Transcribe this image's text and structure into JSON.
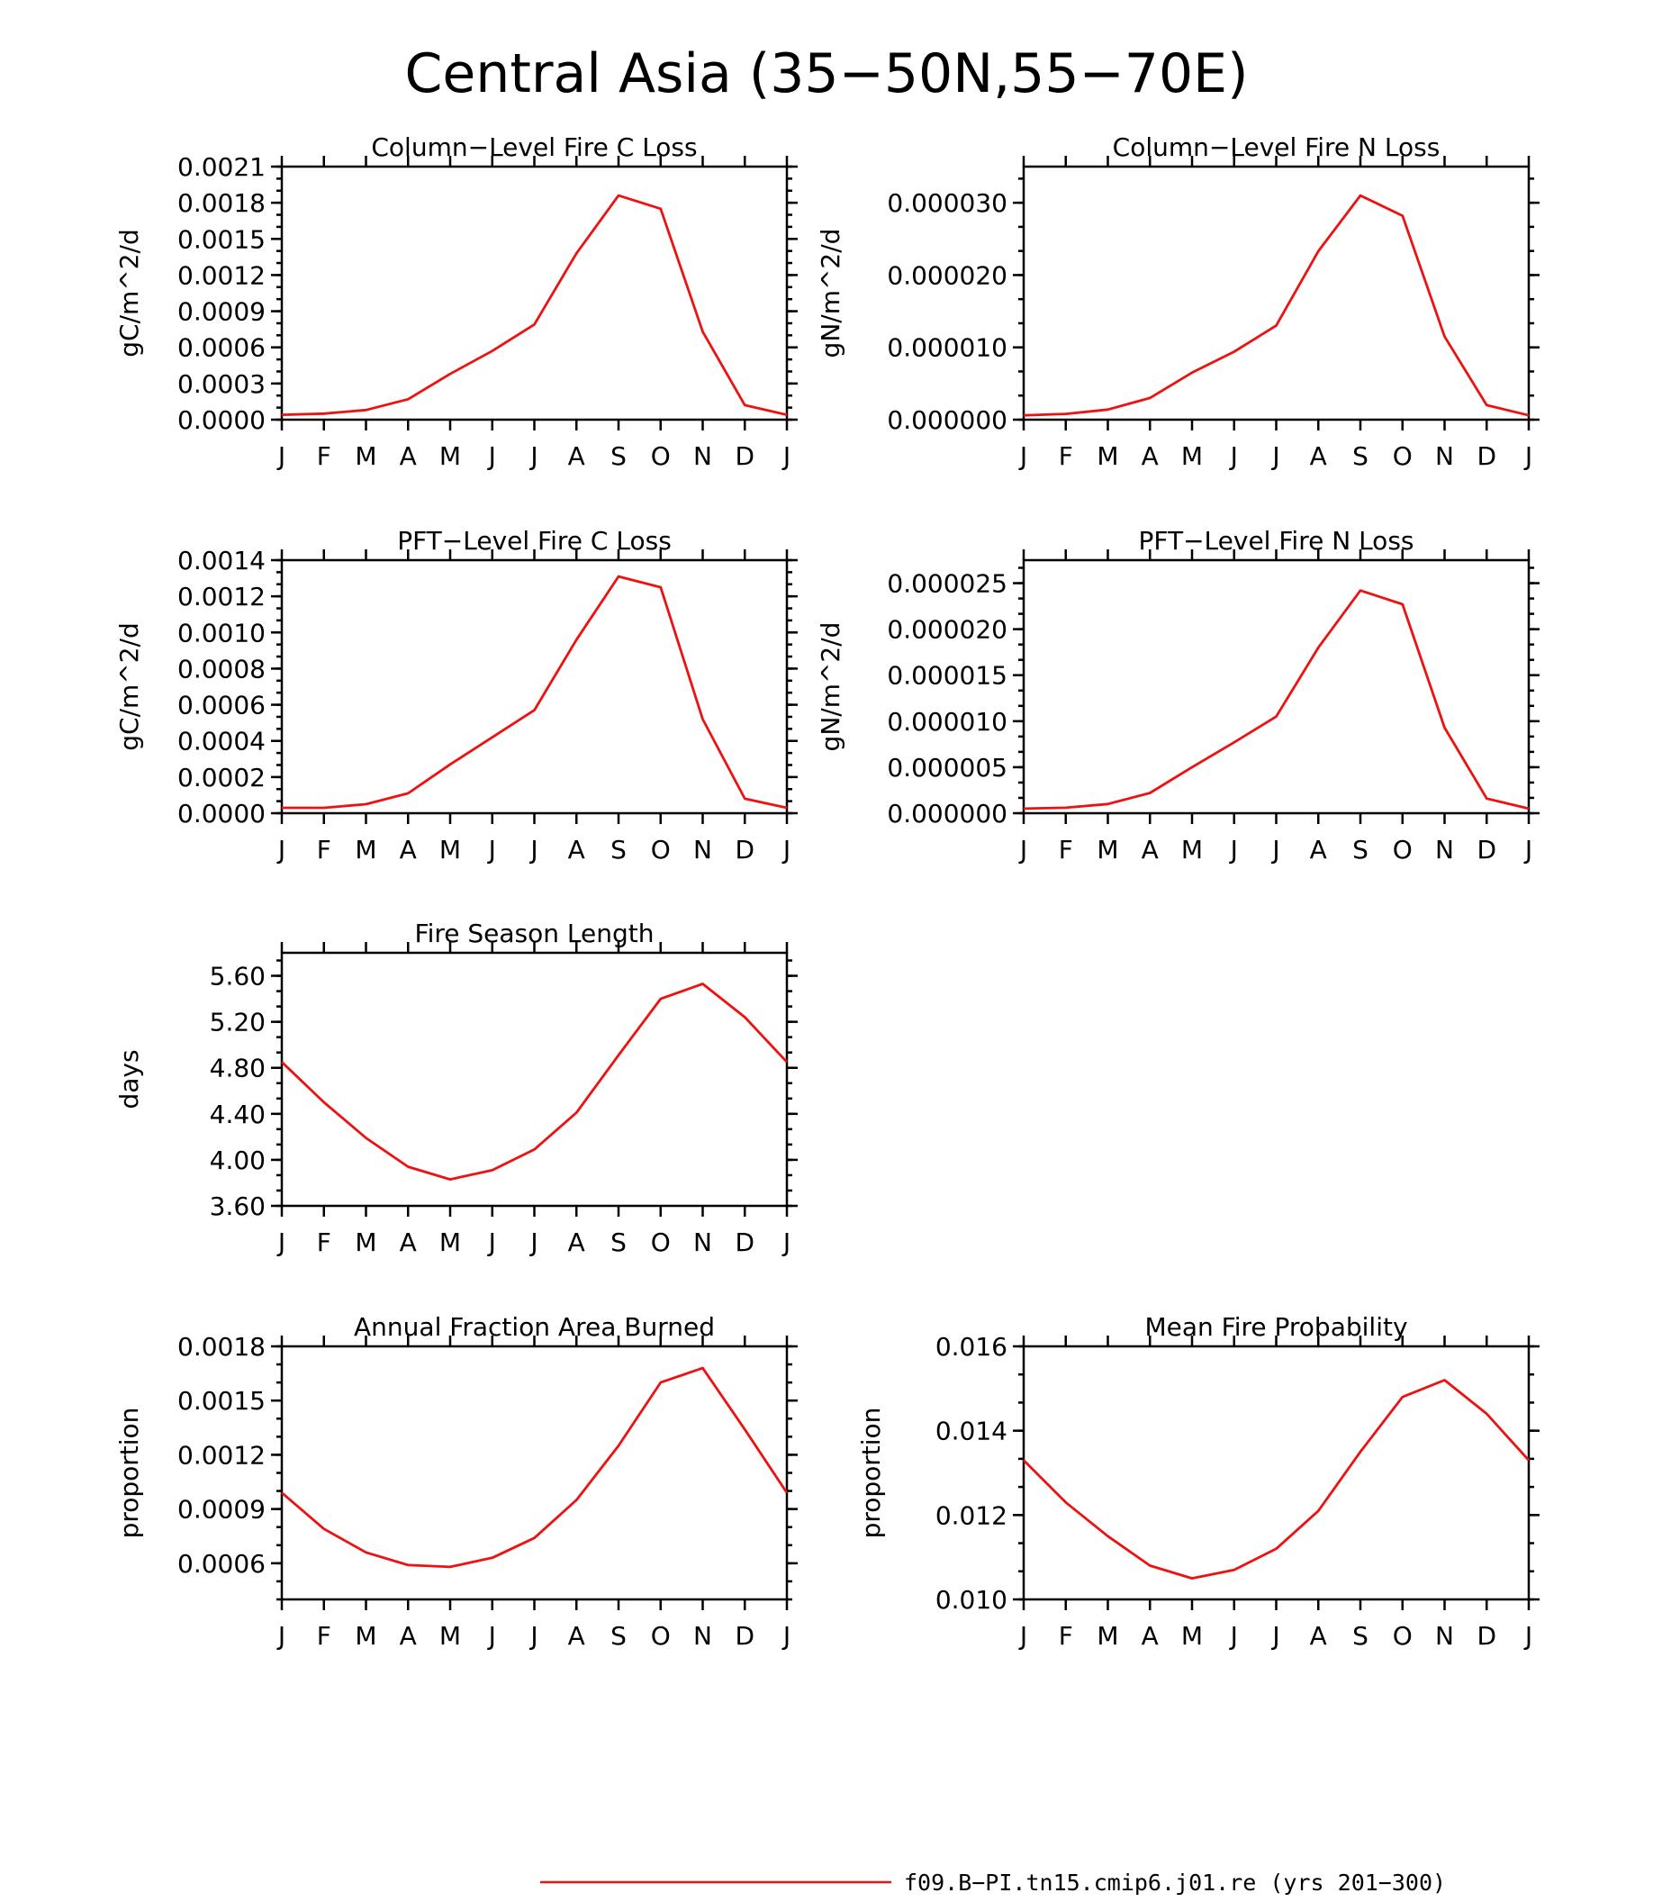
{
  "title": "Central Asia (35−50N,55−70E)",
  "legend": {
    "label": "f09.B−PI.tn15.cmip6.j01.re (yrs 201−300)",
    "color": "#ee1111"
  },
  "chart_data": [
    {
      "type": "line",
      "title": "Column−Level Fire C Loss",
      "ylabel": "gC/m^2/d",
      "categories": [
        "J",
        "F",
        "M",
        "A",
        "M",
        "J",
        "J",
        "A",
        "S",
        "O",
        "N",
        "D",
        "J"
      ],
      "ylim": [
        0,
        0.0021
      ],
      "yticks": [
        "0.0000",
        "0.0003",
        "0.0006",
        "0.0009",
        "0.0012",
        "0.0015",
        "0.0018",
        "0.0021"
      ],
      "values": [
        4e-05,
        5e-05,
        8e-05,
        0.00017,
        0.00038,
        0.00057,
        0.00079,
        0.00138,
        0.00186,
        0.00175,
        0.00073,
        0.00012,
        4e-05
      ]
    },
    {
      "type": "line",
      "title": "Column−Level Fire N Loss",
      "ylabel": "gN/m^2/d",
      "categories": [
        "J",
        "F",
        "M",
        "A",
        "M",
        "J",
        "J",
        "A",
        "S",
        "O",
        "N",
        "D",
        "J"
      ],
      "ylim": [
        0,
        3.5e-05
      ],
      "yticks": [
        "0.000000",
        "0.000010",
        "0.000020",
        "0.000030"
      ],
      "ytick_values": [
        0,
        1e-05,
        2e-05,
        3e-05
      ],
      "values": [
        6e-07,
        8e-07,
        1.4e-06,
        3e-06,
        6.5e-06,
        9.4e-06,
        1.3e-05,
        2.33e-05,
        3.1e-05,
        2.82e-05,
        1.15e-05,
        2e-06,
        6e-07
      ]
    },
    {
      "type": "line",
      "title": "PFT−Level Fire C Loss",
      "ylabel": "gC/m^2/d",
      "categories": [
        "J",
        "F",
        "M",
        "A",
        "M",
        "J",
        "J",
        "A",
        "S",
        "O",
        "N",
        "D",
        "J"
      ],
      "ylim": [
        0,
        0.0014
      ],
      "yticks": [
        "0.0000",
        "0.0002",
        "0.0004",
        "0.0006",
        "0.0008",
        "0.0010",
        "0.0012",
        "0.0014"
      ],
      "values": [
        3e-05,
        3e-05,
        5e-05,
        0.00011,
        0.00027,
        0.00042,
        0.00057,
        0.00096,
        0.00131,
        0.00125,
        0.00052,
        8e-05,
        3e-05
      ]
    },
    {
      "type": "line",
      "title": "PFT−Level Fire N Loss",
      "ylabel": "gN/m^2/d",
      "categories": [
        "J",
        "F",
        "M",
        "A",
        "M",
        "J",
        "J",
        "A",
        "S",
        "O",
        "N",
        "D",
        "J"
      ],
      "ylim": [
        0,
        2.75e-05
      ],
      "yticks": [
        "0.000000",
        "0.000005",
        "0.000010",
        "0.000015",
        "0.000020",
        "0.000025"
      ],
      "ytick_values": [
        0,
        5e-06,
        1e-05,
        1.5e-05,
        2e-05,
        2.5e-05
      ],
      "values": [
        5e-07,
        6e-07,
        1e-06,
        2.2e-06,
        5e-06,
        7.7e-06,
        1.05e-05,
        1.8e-05,
        2.42e-05,
        2.27e-05,
        9.3e-06,
        1.6e-06,
        5e-07
      ]
    },
    {
      "type": "line",
      "title": "Fire Season Length",
      "ylabel": "days",
      "categories": [
        "J",
        "F",
        "M",
        "A",
        "M",
        "J",
        "J",
        "A",
        "S",
        "O",
        "N",
        "D",
        "J"
      ],
      "ylim": [
        3.6,
        5.8
      ],
      "yticks": [
        "3.60",
        "4.00",
        "4.40",
        "4.80",
        "5.20",
        "5.60"
      ],
      "ytick_values": [
        3.6,
        4.0,
        4.4,
        4.8,
        5.2,
        5.6
      ],
      "values": [
        4.85,
        4.5,
        4.19,
        3.94,
        3.83,
        3.91,
        4.09,
        4.41,
        4.91,
        5.4,
        5.53,
        5.24,
        4.85
      ]
    },
    {
      "type": "line",
      "title": "Annual Fraction Area Burned",
      "ylabel": "proportion",
      "categories": [
        "J",
        "F",
        "M",
        "A",
        "M",
        "J",
        "J",
        "A",
        "S",
        "O",
        "N",
        "D",
        "J"
      ],
      "ylim": [
        0.0004,
        0.0018
      ],
      "yticks": [
        "0.0006",
        "0.0009",
        "0.0012",
        "0.0015",
        "0.0018"
      ],
      "ytick_values": [
        0.0006,
        0.0009,
        0.0012,
        0.0015,
        0.0018
      ],
      "values": [
        0.00099,
        0.00079,
        0.00066,
        0.00059,
        0.00058,
        0.00063,
        0.00074,
        0.00095,
        0.00125,
        0.0016,
        0.00168,
        0.00134,
        0.00099
      ]
    },
    {
      "type": "line",
      "title": "Mean Fire Probability",
      "ylabel": "proportion",
      "categories": [
        "J",
        "F",
        "M",
        "A",
        "M",
        "J",
        "J",
        "A",
        "S",
        "O",
        "N",
        "D",
        "J"
      ],
      "ylim": [
        0.01,
        0.016
      ],
      "yticks": [
        "0.010",
        "0.012",
        "0.014",
        "0.016"
      ],
      "ytick_values": [
        0.01,
        0.012,
        0.014,
        0.016
      ],
      "values": [
        0.0133,
        0.0123,
        0.0115,
        0.0108,
        0.0105,
        0.0107,
        0.0112,
        0.0121,
        0.0135,
        0.0148,
        0.0152,
        0.0144,
        0.0133
      ]
    }
  ]
}
